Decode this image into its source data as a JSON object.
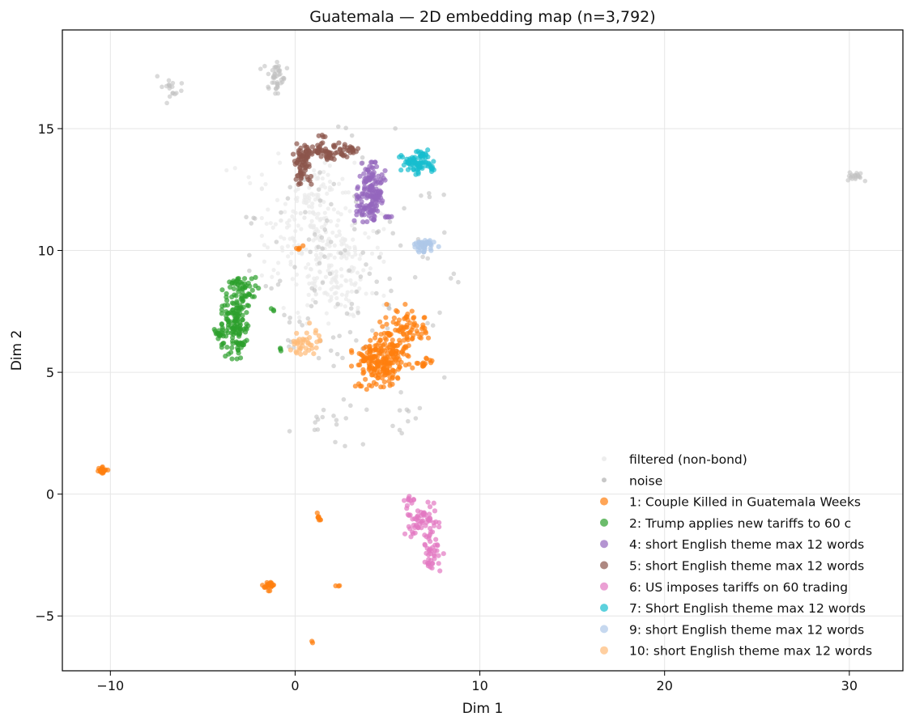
{
  "chart_data": {
    "type": "scatter",
    "title": "Guatemala — 2D embedding map (n=3,792)",
    "xlabel": "Dim 1",
    "ylabel": "Dim 2",
    "xlim": [
      -12.6,
      32.9
    ],
    "ylim": [
      -7.25,
      19.05
    ],
    "xticks": [
      -10,
      0,
      10,
      20,
      30
    ],
    "yticks": [
      -5,
      0,
      5,
      10,
      15
    ],
    "xtick_labels": [
      "−10",
      "0",
      "10",
      "20",
      "30"
    ],
    "ytick_labels": [
      "−5",
      "0",
      "5",
      "10",
      "15"
    ],
    "grid": true,
    "legend_position": "lower-right",
    "series": [
      {
        "name": "filtered (non-bond)",
        "color": "#ebebeb",
        "clusters": [
          [
            1.5,
            10.3,
            1.5,
            1.5,
            260
          ],
          [
            0.8,
            12.0,
            0.8,
            0.9,
            40
          ],
          [
            2.5,
            8.6,
            0.9,
            0.6,
            40
          ],
          [
            -3.1,
            13.2,
            0.3,
            0.2,
            4
          ]
        ]
      },
      {
        "name": "noise",
        "color": "#c2c2c2",
        "clusters": [
          [
            -1.1,
            17.1,
            0.35,
            0.3,
            45
          ],
          [
            -6.8,
            16.6,
            0.3,
            0.25,
            18
          ],
          [
            30.4,
            13.0,
            0.25,
            0.1,
            18
          ],
          [
            2.8,
            9.8,
            2.4,
            2.4,
            110
          ],
          [
            1.9,
            2.9,
            1.0,
            0.7,
            18
          ],
          [
            5.7,
            3.3,
            0.5,
            0.4,
            10
          ],
          [
            -2.3,
            11.3,
            0.2,
            0.1,
            4
          ],
          [
            8.7,
            8.9,
            0.15,
            0.1,
            3
          ],
          [
            6.9,
            12.4,
            0.3,
            0.2,
            3
          ],
          [
            -1.2,
            8.2,
            0.3,
            0.3,
            4
          ]
        ]
      },
      {
        "name": "1: Couple Killed in Guatemala Weeks",
        "color": "#ff7f0e",
        "clusters": [
          [
            4.7,
            5.5,
            0.75,
            0.5,
            220
          ],
          [
            5.8,
            6.8,
            0.55,
            0.45,
            70
          ],
          [
            7.0,
            5.4,
            0.25,
            0.1,
            14
          ],
          [
            7.0,
            6.5,
            0.2,
            0.08,
            6
          ],
          [
            -10.4,
            0.95,
            0.12,
            0.1,
            20
          ],
          [
            -1.4,
            -3.75,
            0.18,
            0.1,
            22
          ],
          [
            1.3,
            -0.95,
            0.08,
            0.08,
            8
          ],
          [
            2.3,
            -3.75,
            0.05,
            0.05,
            3
          ],
          [
            0.95,
            -6.05,
            0.05,
            0.05,
            2
          ],
          [
            0.2,
            10.15,
            0.2,
            0.05,
            5
          ],
          [
            3.8,
            4.4,
            0.3,
            0.1,
            6
          ]
        ]
      },
      {
        "name": "2: Trump applies new tariffs to 60 c",
        "color": "#2ca02c",
        "clusters": [
          [
            -3.2,
            7.2,
            0.35,
            0.75,
            150
          ],
          [
            -4.1,
            6.6,
            0.18,
            0.1,
            16
          ],
          [
            -2.6,
            8.4,
            0.3,
            0.25,
            20
          ],
          [
            -3.3,
            8.7,
            0.15,
            0.05,
            8
          ],
          [
            -3.0,
            6.2,
            0.15,
            0.1,
            10
          ],
          [
            -0.8,
            5.95,
            0.05,
            0.05,
            3
          ],
          [
            -1.2,
            7.55,
            0.05,
            0.05,
            3
          ]
        ]
      },
      {
        "name": "4: short English theme max 12 words",
        "color": "#9467bd",
        "clusters": [
          [
            4.1,
            12.3,
            0.35,
            0.6,
            120
          ],
          [
            3.8,
            11.6,
            0.3,
            0.25,
            25
          ],
          [
            4.1,
            13.0,
            0.3,
            0.2,
            20
          ],
          [
            5.1,
            11.4,
            0.15,
            0.05,
            6
          ]
        ]
      },
      {
        "name": "5: short English theme max 12 words",
        "color": "#8c564b",
        "clusters": [
          [
            0.4,
            13.5,
            0.25,
            0.4,
            70
          ],
          [
            1.5,
            14.05,
            0.6,
            0.12,
            55
          ],
          [
            2.9,
            14.15,
            0.35,
            0.12,
            25
          ],
          [
            1.5,
            14.6,
            0.1,
            0.1,
            6
          ],
          [
            1.9,
            13.7,
            0.15,
            0.1,
            6
          ]
        ]
      },
      {
        "name": "6: US imposes tariffs on 60 trading",
        "color": "#e377c2",
        "clusters": [
          [
            6.8,
            -1.1,
            0.45,
            0.35,
            60
          ],
          [
            7.5,
            -2.4,
            0.3,
            0.5,
            40
          ],
          [
            6.2,
            -0.3,
            0.2,
            0.15,
            10
          ]
        ]
      },
      {
        "name": "7: Short English theme max 12 words",
        "color": "#17becf",
        "clusters": [
          [
            6.5,
            13.6,
            0.45,
            0.2,
            60
          ],
          [
            6.9,
            13.95,
            0.2,
            0.08,
            15
          ],
          [
            7.4,
            13.35,
            0.1,
            0.05,
            8
          ],
          [
            6.6,
            13.2,
            0.1,
            0.08,
            6
          ]
        ]
      },
      {
        "name": "9: short English theme max 12 words",
        "color": "#aec7e8",
        "clusters": [
          [
            7.0,
            10.2,
            0.35,
            0.12,
            45
          ]
        ]
      },
      {
        "name": "10: short English theme max 12 words",
        "color": "#ffbb78",
        "clusters": [
          [
            0.6,
            6.25,
            0.4,
            0.35,
            40
          ]
        ]
      }
    ]
  }
}
